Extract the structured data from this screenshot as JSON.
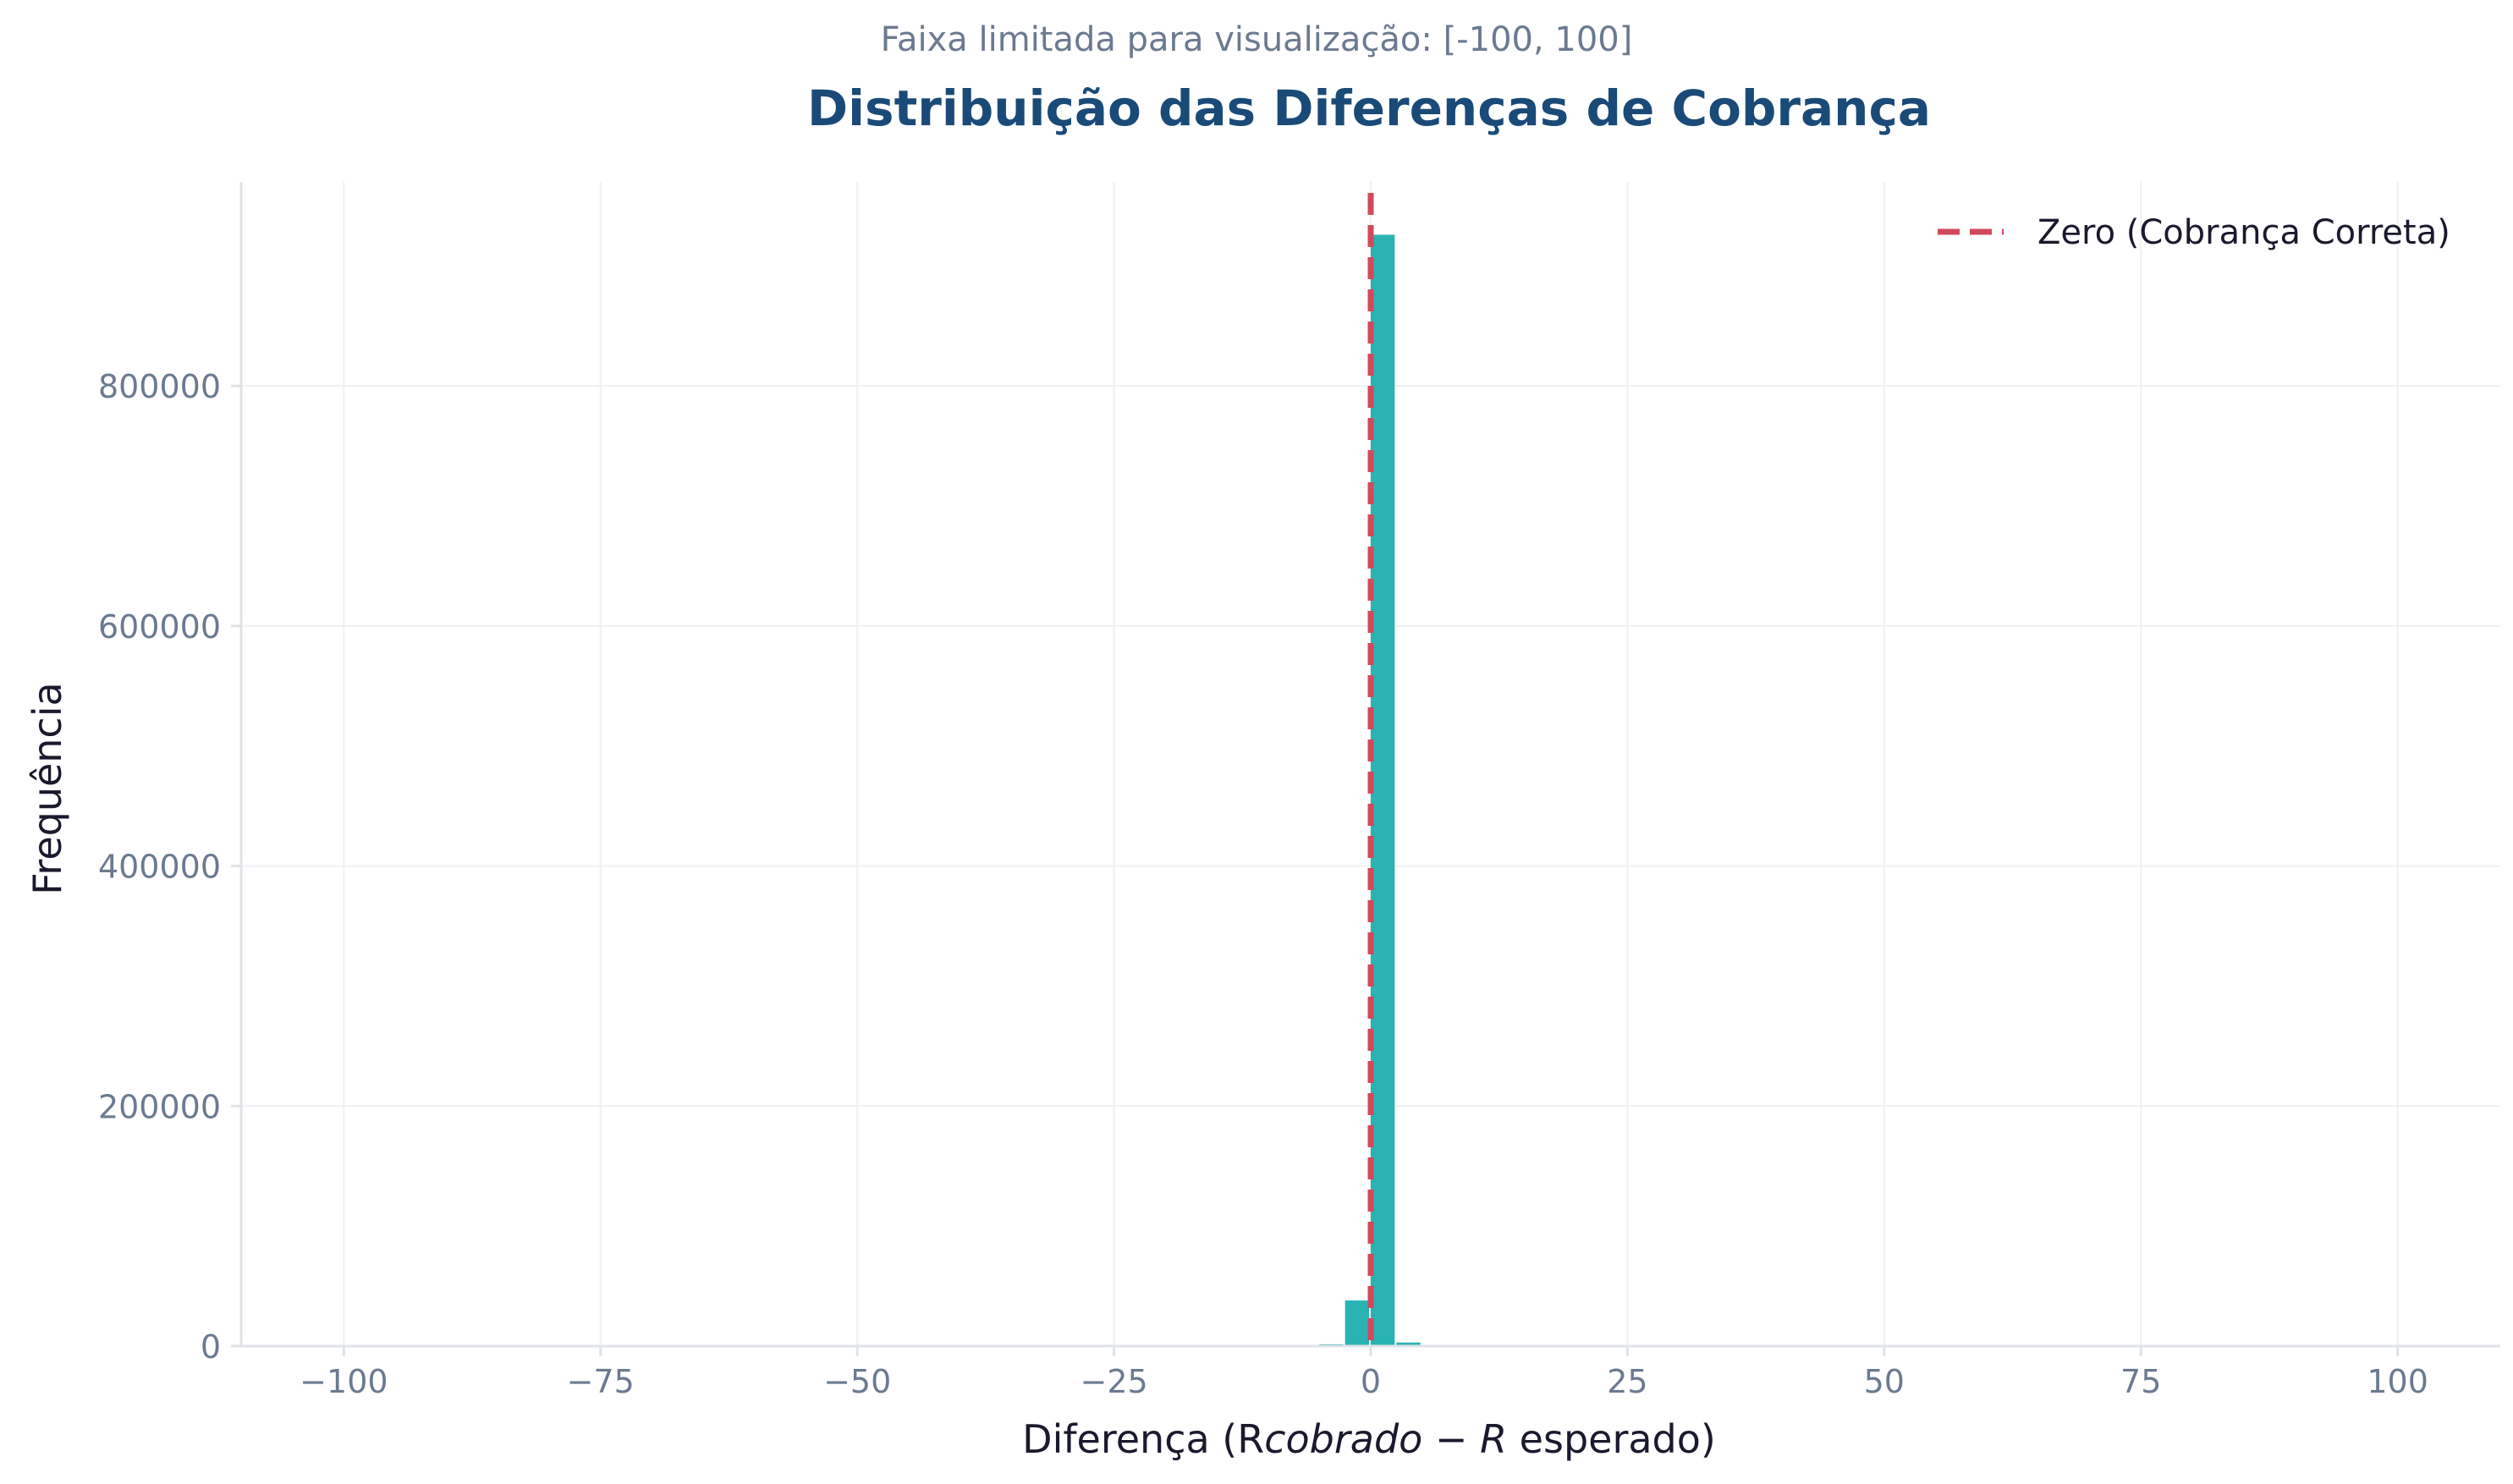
{
  "chart_data": {
    "type": "bar",
    "subtitle": "Faixa limitada para visualização: [-100, 100]",
    "title": "Distribuição das Diferenças de Cobrança",
    "xlabel_parts": [
      "Diferença (R",
      "cobrado",
      " − ",
      "R",
      " esperado)"
    ],
    "ylabel": "Frequência",
    "xlim": [
      -110,
      110
    ],
    "ylim": [
      0,
      970000
    ],
    "x_ticks": [
      -100,
      -75,
      -50,
      -25,
      0,
      25,
      50,
      75,
      100
    ],
    "x_tick_labels": [
      "−100",
      "−75",
      "−50",
      "−25",
      "0",
      "25",
      "50",
      "75",
      "100"
    ],
    "y_ticks": [
      0,
      200000,
      400000,
      600000,
      800000
    ],
    "y_tick_labels": [
      "0",
      "200000",
      "400000",
      "600000",
      "800000"
    ],
    "bin_width": 2.5,
    "bins": [
      {
        "x0": -5.0,
        "count": 1500
      },
      {
        "x0": -2.5,
        "count": 38000
      },
      {
        "x0": 0.0,
        "count": 926000
      },
      {
        "x0": 2.5,
        "count": 3000
      },
      {
        "x0": 5.0,
        "count": 800
      }
    ],
    "reference_line": {
      "x": 0,
      "label": "Zero (Cobrança Correta)"
    },
    "legend_position": "top-right",
    "grid": true,
    "colors": {
      "bar": "#2ab3b3",
      "reference_line": "#d1495b",
      "title": "#1a4a78",
      "subtitle": "#6b7a90",
      "tick": "#6b7a90",
      "grid": "#eef0f3",
      "axis": "#dfe3e8",
      "label": "#1a1a2e"
    }
  }
}
